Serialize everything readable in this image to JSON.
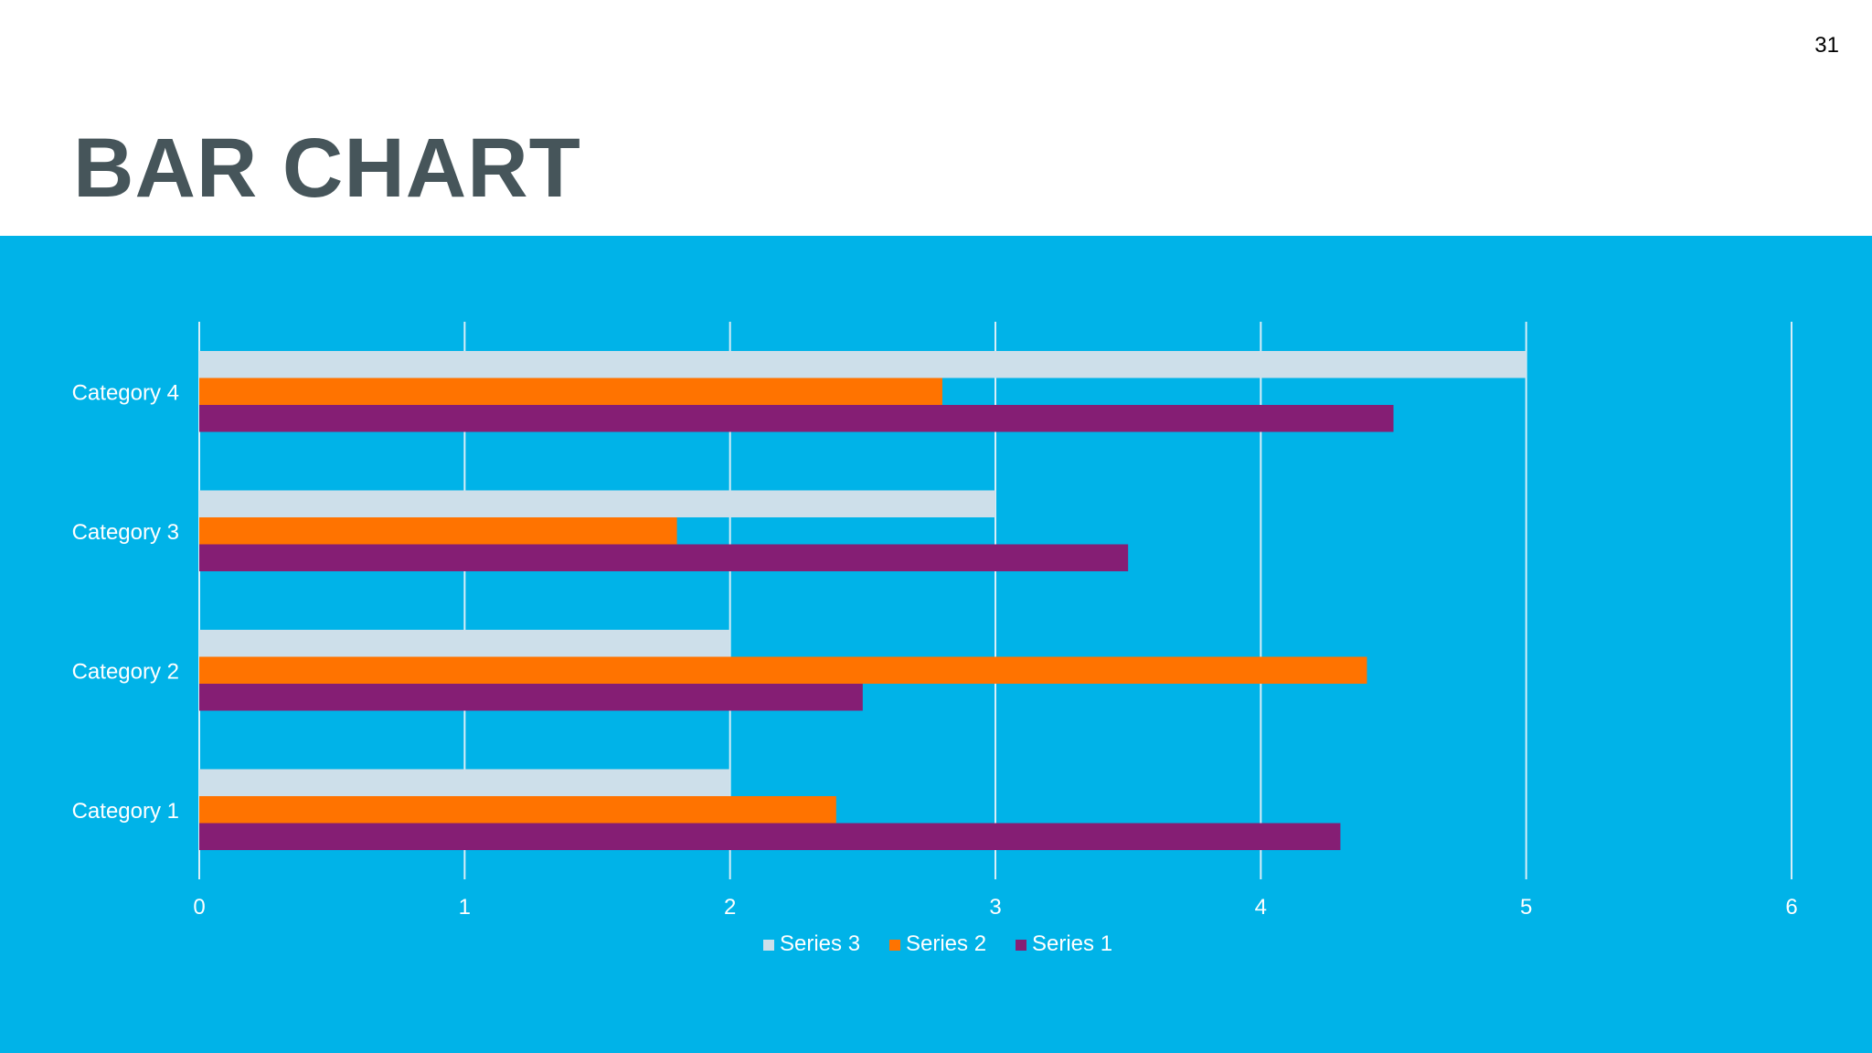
{
  "slide": {
    "title": "BAR CHART",
    "page_number": "31",
    "background_color": "#ffffff",
    "panel_color": "#00b3e8",
    "title_color": "#46555a"
  },
  "chart_data": {
    "type": "bar",
    "orientation": "horizontal",
    "title": "",
    "xlabel": "",
    "ylabel": "",
    "categories": [
      "Category 1",
      "Category 2",
      "Category 3",
      "Category 4"
    ],
    "series": [
      {
        "name": "Series 1",
        "values": [
          4.3,
          2.5,
          3.5,
          4.5
        ],
        "color": "#851e74"
      },
      {
        "name": "Series 2",
        "values": [
          2.4,
          4.4,
          1.8,
          2.8
        ],
        "color": "#ff7300"
      },
      {
        "name": "Series 3",
        "values": [
          2,
          2,
          3,
          5
        ],
        "color": "#cddfea"
      }
    ],
    "xlim": [
      0,
      6
    ],
    "x_ticks": [
      "0",
      "1",
      "2",
      "3",
      "4",
      "5",
      "6"
    ],
    "grid": true,
    "legend_position": "bottom",
    "legend_order": [
      "Series 3",
      "Series 2",
      "Series 1"
    ]
  }
}
